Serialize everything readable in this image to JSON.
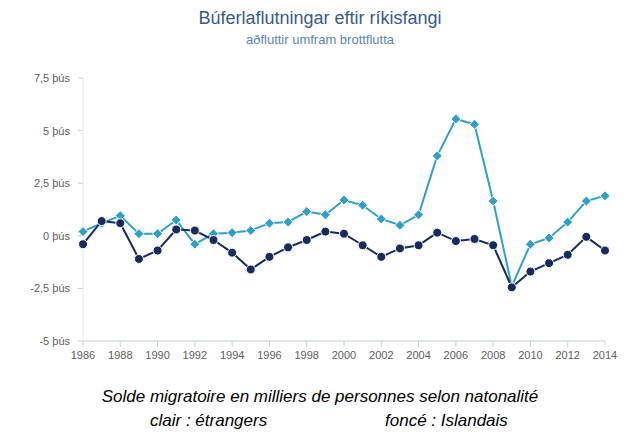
{
  "chart_data": {
    "type": "line",
    "title": "Búferlaflutningar eftir ríkisfangi",
    "subtitle": "aðfluttir umfram brottflutta",
    "annotations": [
      "Solde migratoire en milliers de personnes selon natonalité",
      "clair : étrangers",
      "foncé : Islandais"
    ],
    "x": [
      1986,
      1987,
      1988,
      1989,
      1990,
      1991,
      1992,
      1993,
      1994,
      1995,
      1996,
      1997,
      1998,
      1999,
      2000,
      2001,
      2002,
      2003,
      2004,
      2005,
      2006,
      2007,
      2008,
      2009,
      2010,
      2011,
      2012,
      2013,
      2014
    ],
    "series": [
      {
        "color": "#2fa0c8",
        "marker": "diamond",
        "line_style": "solid",
        "values": [
          0.2,
          0.6,
          0.95,
          0.1,
          0.1,
          0.75,
          -0.4,
          0.1,
          0.15,
          0.25,
          0.6,
          0.65,
          1.15,
          1.0,
          1.7,
          1.45,
          0.8,
          0.5,
          1.0,
          3.8,
          5.55,
          5.3,
          1.65,
          -2.4,
          -0.4,
          -0.1,
          0.65,
          1.65,
          1.9
        ]
      },
      {
        "color": "#172c5c",
        "marker": "circle",
        "line_style": "solid",
        "values": [
          -0.4,
          0.7,
          0.6,
          -1.1,
          -0.7,
          0.3,
          0.25,
          -0.2,
          -0.8,
          -1.6,
          -1.0,
          -0.55,
          -0.2,
          0.2,
          0.1,
          -0.45,
          -1.0,
          -0.6,
          -0.45,
          0.15,
          -0.25,
          -0.15,
          -0.45,
          -2.45,
          -1.7,
          -1.3,
          -0.9,
          -0.05,
          -0.7
        ]
      }
    ],
    "xlim": [
      1986,
      2014
    ],
    "xticks": [
      1986,
      1988,
      1990,
      1992,
      1994,
      1996,
      1998,
      2000,
      2002,
      2004,
      2006,
      2008,
      2010,
      2012,
      2014
    ],
    "ylim": [
      -5,
      7.5
    ],
    "yticks": [
      {
        "value": -5,
        "label": "-5 þús"
      },
      {
        "value": -2.5,
        "label": "-2,5 þús"
      },
      {
        "value": 0,
        "label": "0 þús"
      },
      {
        "value": 2.5,
        "label": "2,5 þús"
      },
      {
        "value": 5,
        "label": "5 þús"
      },
      {
        "value": 7.5,
        "label": "7,5 þús"
      }
    ],
    "grid": false
  }
}
